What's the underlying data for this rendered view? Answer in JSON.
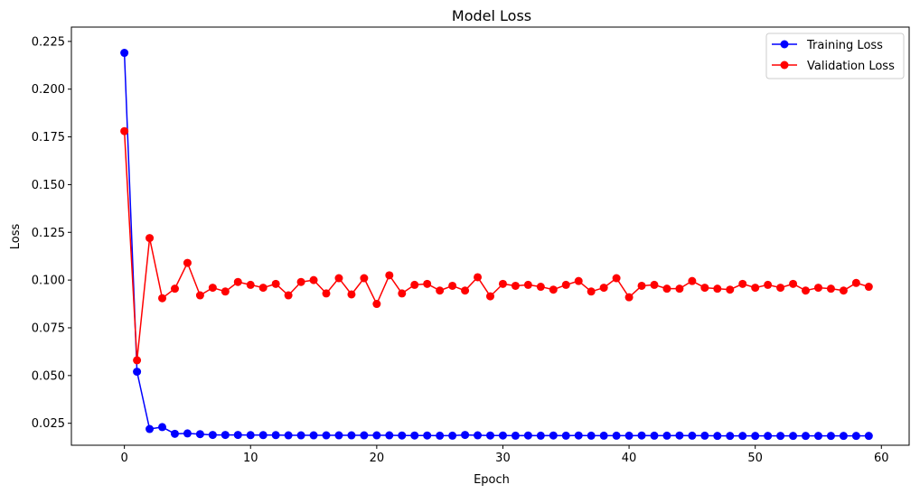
{
  "chart_data": {
    "type": "line",
    "title": "Model Loss",
    "xlabel": "Epoch",
    "ylabel": "Loss",
    "xlim": [
      -4.2,
      62.2
    ],
    "ylim": [
      0.0135,
      0.2325
    ],
    "xticks": [
      0,
      10,
      20,
      30,
      40,
      50,
      60
    ],
    "yticks": [
      0.025,
      0.05,
      0.075,
      0.1,
      0.125,
      0.15,
      0.175,
      0.2,
      0.225
    ],
    "ytick_labels": [
      "0.025",
      "0.050",
      "0.075",
      "0.100",
      "0.125",
      "0.150",
      "0.175",
      "0.200",
      "0.225"
    ],
    "grid": false,
    "legend": "top-right",
    "x": [
      0,
      1,
      2,
      3,
      4,
      5,
      6,
      7,
      8,
      9,
      10,
      11,
      12,
      13,
      14,
      15,
      16,
      17,
      18,
      19,
      20,
      21,
      22,
      23,
      24,
      25,
      26,
      27,
      28,
      29,
      30,
      31,
      32,
      33,
      34,
      35,
      36,
      37,
      38,
      39,
      40,
      41,
      42,
      43,
      44,
      45,
      46,
      47,
      48,
      49,
      50,
      51,
      52,
      53,
      54,
      55,
      56,
      57,
      58,
      59
    ],
    "series": [
      {
        "name": "Training Loss",
        "color": "#0000ff",
        "values": [
          0.219,
          0.052,
          0.022,
          0.023,
          0.0195,
          0.0197,
          0.0193,
          0.0189,
          0.0189,
          0.0189,
          0.0188,
          0.0188,
          0.0188,
          0.0187,
          0.0187,
          0.0187,
          0.0187,
          0.0187,
          0.0187,
          0.0187,
          0.0187,
          0.0187,
          0.0186,
          0.0186,
          0.0186,
          0.0185,
          0.0185,
          0.0189,
          0.0187,
          0.0186,
          0.0186,
          0.0185,
          0.0186,
          0.0185,
          0.0186,
          0.0185,
          0.0186,
          0.0185,
          0.0185,
          0.0185,
          0.0185,
          0.0186,
          0.0185,
          0.0185,
          0.0186,
          0.0185,
          0.0185,
          0.0184,
          0.0184,
          0.0184,
          0.0184,
          0.0184,
          0.0184,
          0.0184,
          0.0184,
          0.0184,
          0.0184,
          0.0184,
          0.0184,
          0.0184
        ]
      },
      {
        "name": "Validation Loss",
        "color": "#ff0000",
        "values": [
          0.178,
          0.058,
          0.122,
          0.0905,
          0.0955,
          0.109,
          0.092,
          0.096,
          0.094,
          0.099,
          0.0975,
          0.096,
          0.098,
          0.092,
          0.099,
          0.1,
          0.093,
          0.101,
          0.0925,
          0.101,
          0.0875,
          0.1025,
          0.093,
          0.0975,
          0.098,
          0.0945,
          0.097,
          0.0945,
          0.1015,
          0.0915,
          0.098,
          0.097,
          0.0975,
          0.0965,
          0.095,
          0.0975,
          0.0995,
          0.094,
          0.096,
          0.101,
          0.091,
          0.097,
          0.0975,
          0.0955,
          0.0955,
          0.0995,
          0.096,
          0.0955,
          0.095,
          0.098,
          0.096,
          0.0975,
          0.096,
          0.098,
          0.0945,
          0.096,
          0.0955,
          0.0945,
          0.0985,
          0.0965
        ]
      }
    ]
  }
}
